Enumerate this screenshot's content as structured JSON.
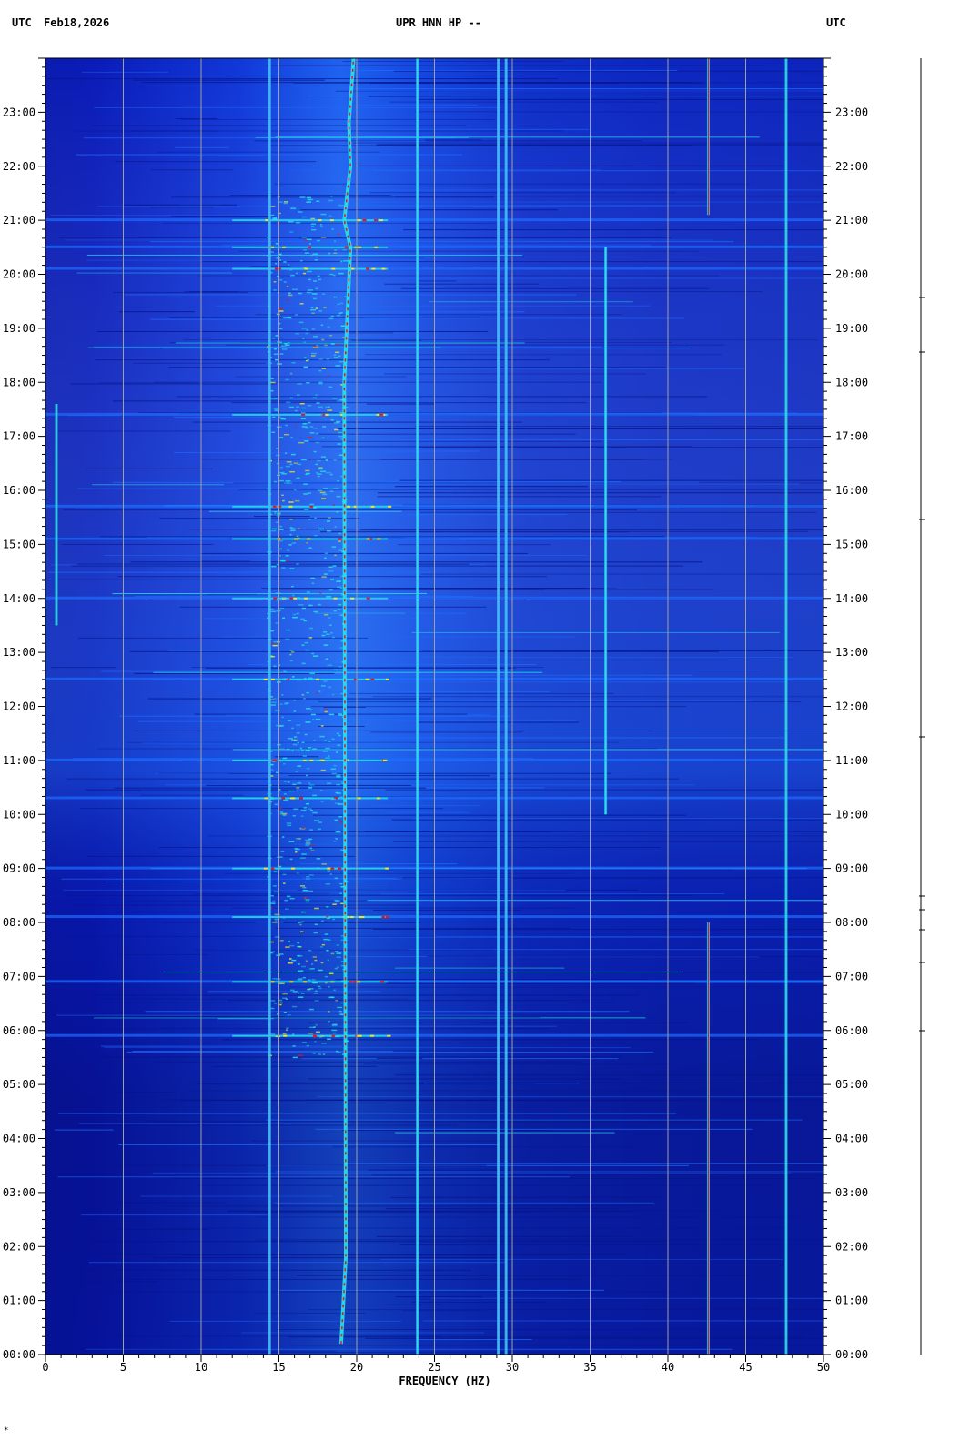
{
  "header": {
    "left_tz": "UTC",
    "date": "Feb18,2026",
    "station": "UPR HNN HP --",
    "right_tz": "UTC"
  },
  "corner_mark": "*",
  "colors": {
    "background": "#0a1ec8",
    "band_bright": "#1e6cff",
    "hot_cyan": "#27e3e8",
    "hot_yellow": "#f0e820",
    "hot_red": "#e01818",
    "gridline": "#a0a0a0"
  },
  "chart_data": {
    "type": "heatmap",
    "title": "UPR HNN HP --",
    "xlabel": "FREQUENCY (HZ)",
    "ylabel": "",
    "xlim": [
      0,
      50
    ],
    "ylim": [
      "00:00",
      "24:00"
    ],
    "x_ticks": [
      0,
      5,
      10,
      15,
      20,
      25,
      30,
      35,
      40,
      45,
      50
    ],
    "x_minor_step": 1,
    "y_ticks": [
      "00:00",
      "01:00",
      "02:00",
      "03:00",
      "04:00",
      "05:00",
      "06:00",
      "07:00",
      "08:00",
      "09:00",
      "10:00",
      "11:00",
      "12:00",
      "13:00",
      "14:00",
      "15:00",
      "16:00",
      "17:00",
      "18:00",
      "19:00",
      "20:00",
      "21:00",
      "22:00",
      "23:00"
    ],
    "y_minor_per_hour": 6,
    "vertical_gridlines_hz": [
      5,
      10,
      15,
      20,
      25,
      30,
      35,
      40,
      45
    ],
    "spectral_lines": [
      {
        "freq_hz": 23.9,
        "start_hour": 0,
        "end_hour": 24,
        "intensity": "high"
      },
      {
        "freq_hz": 29.1,
        "start_hour": 0,
        "end_hour": 24,
        "intensity": "medium"
      },
      {
        "freq_hz": 29.6,
        "start_hour": 0,
        "end_hour": 24,
        "intensity": "medium"
      },
      {
        "freq_hz": 42.6,
        "start_hour": 0,
        "end_hour": 8,
        "intensity": "very high"
      },
      {
        "freq_hz": 42.6,
        "start_hour": 21.1,
        "end_hour": 24,
        "intensity": "very high"
      },
      {
        "freq_hz": 47.6,
        "start_hour": 0,
        "end_hour": 24,
        "intensity": "high"
      },
      {
        "freq_hz": 36.0,
        "start_hour": 10,
        "end_hour": 20.5,
        "intensity": "high"
      },
      {
        "freq_hz": 14.4,
        "start_hour": 0,
        "end_hour": 24,
        "intensity": "medium"
      },
      {
        "freq_hz": 0.7,
        "start_hour": 13.5,
        "end_hour": 17.6,
        "intensity": "high"
      }
    ],
    "wandering_line": {
      "description": "drifting tone",
      "points": [
        [
          19.0,
          0.2
        ],
        [
          19.3,
          1.8
        ],
        [
          19.2,
          18.0
        ],
        [
          19.6,
          20.5
        ],
        [
          19.2,
          21.0
        ],
        [
          19.6,
          22.0
        ],
        [
          19.5,
          22.8
        ],
        [
          19.8,
          24.0
        ]
      ]
    },
    "broadband_bursts_hours": [
      5.9,
      6.9,
      8.1,
      9.0,
      10.3,
      11.0,
      12.5,
      14.0,
      15.1,
      15.7,
      17.4,
      20.1,
      20.5,
      21.0
    ]
  }
}
